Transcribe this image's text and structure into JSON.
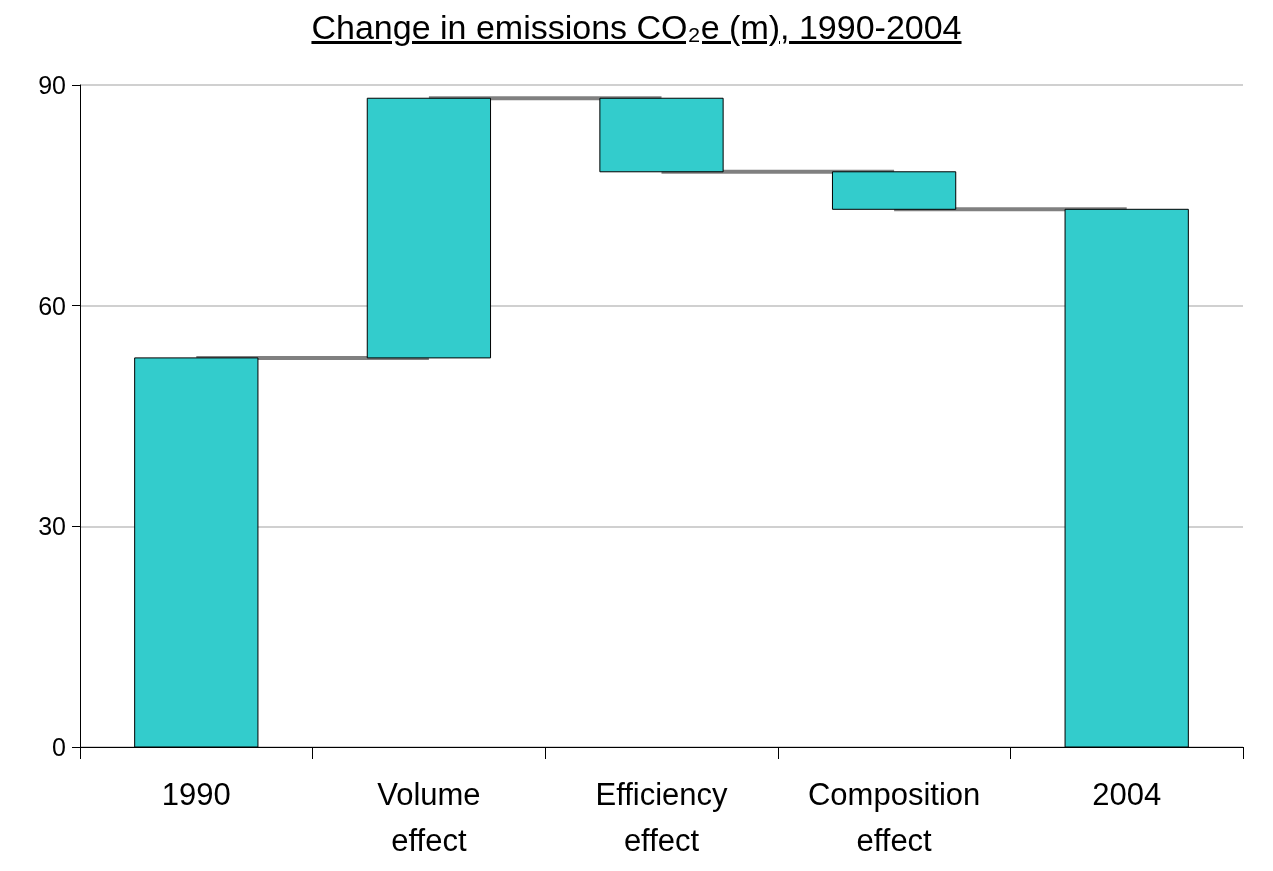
{
  "chart_data": {
    "type": "bar",
    "title": "Change in emissions CO₂e (m), 1990-2004",
    "categories": [
      "1990",
      "Volume effect",
      "Efficiency effect",
      "Composition effect",
      "2004"
    ],
    "series": [
      {
        "color": "#33cccc",
        "values": [
          52.9,
          35.3,
          10.0,
          5.1,
          73.1
        ],
        "base": [
          0,
          52.9,
          78.2,
          73.1,
          0
        ]
      },
      {
        "type": "line",
        "color": "#808080",
        "values": [
          52.9,
          52.9,
          null,
          null,
          null
        ]
      },
      {
        "type": "line",
        "color": "#808080",
        "values": [
          null,
          88.2,
          88.2,
          null,
          null
        ]
      },
      {
        "type": "line",
        "color": "#808080",
        "values": [
          null,
          null,
          78.2,
          78.2,
          null
        ]
      },
      {
        "type": "line",
        "color": "#808080",
        "values": [
          null,
          null,
          null,
          73.1,
          73.1
        ]
      }
    ],
    "ylim": [
      0,
      90
    ],
    "yticks": [
      0,
      30,
      60,
      90
    ],
    "grid": "y",
    "marker": "none"
  }
}
